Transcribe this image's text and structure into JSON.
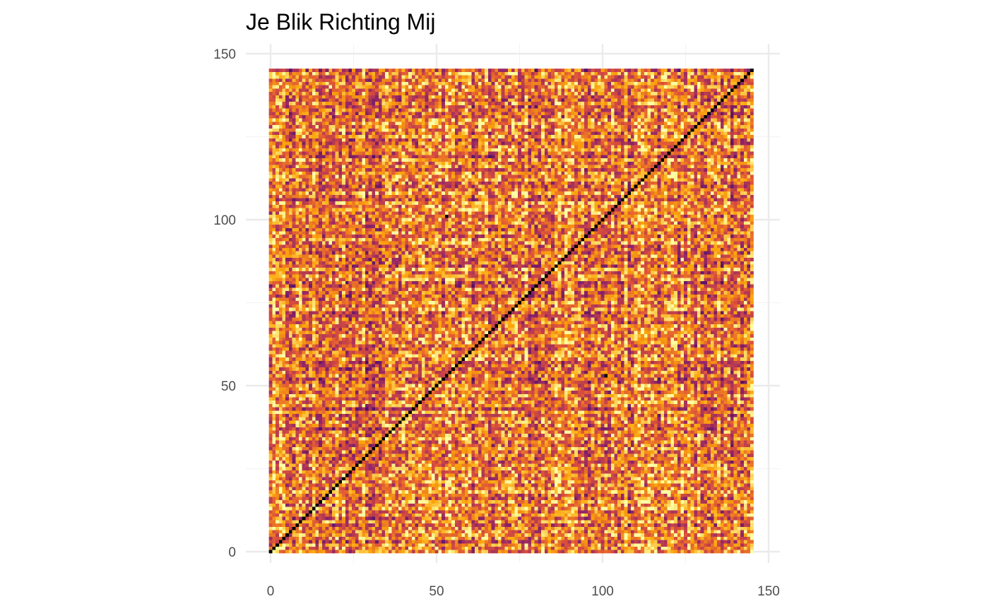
{
  "chart_data": {
    "type": "heatmap",
    "title": "Je Blik Richting Mij",
    "xlabel": "",
    "ylabel": "",
    "x_range": [
      0,
      145
    ],
    "y_range": [
      0,
      145
    ],
    "xlim": [
      -0.5,
      150.5
    ],
    "ylim": [
      -0.5,
      150.5
    ],
    "x_ticks": [
      0,
      50,
      100,
      150
    ],
    "y_ticks": [
      0,
      50,
      100,
      150
    ],
    "x_tick_labels": [
      "0",
      "50",
      "100",
      "150"
    ],
    "y_tick_labels": [
      "0",
      "50",
      "100",
      "150"
    ],
    "grid": true,
    "legend": "none",
    "colormap": "inferno",
    "colormap_stops": [
      "#000004",
      "#420a68",
      "#932667",
      "#dd513a",
      "#fca50a",
      "#fcffa4"
    ],
    "diagonal_value": 0,
    "highlight_cells": [
      {
        "x": 53,
        "y": 53,
        "value": 0
      },
      {
        "x": 101,
        "y": 101,
        "value": 0
      },
      {
        "x": 53,
        "y": 101,
        "value": 0
      },
      {
        "x": 101,
        "y": 53,
        "value": 0
      },
      {
        "x": 137,
        "y": 137,
        "value": 0
      },
      {
        "x": 145,
        "y": 145,
        "value": 0
      }
    ]
  }
}
